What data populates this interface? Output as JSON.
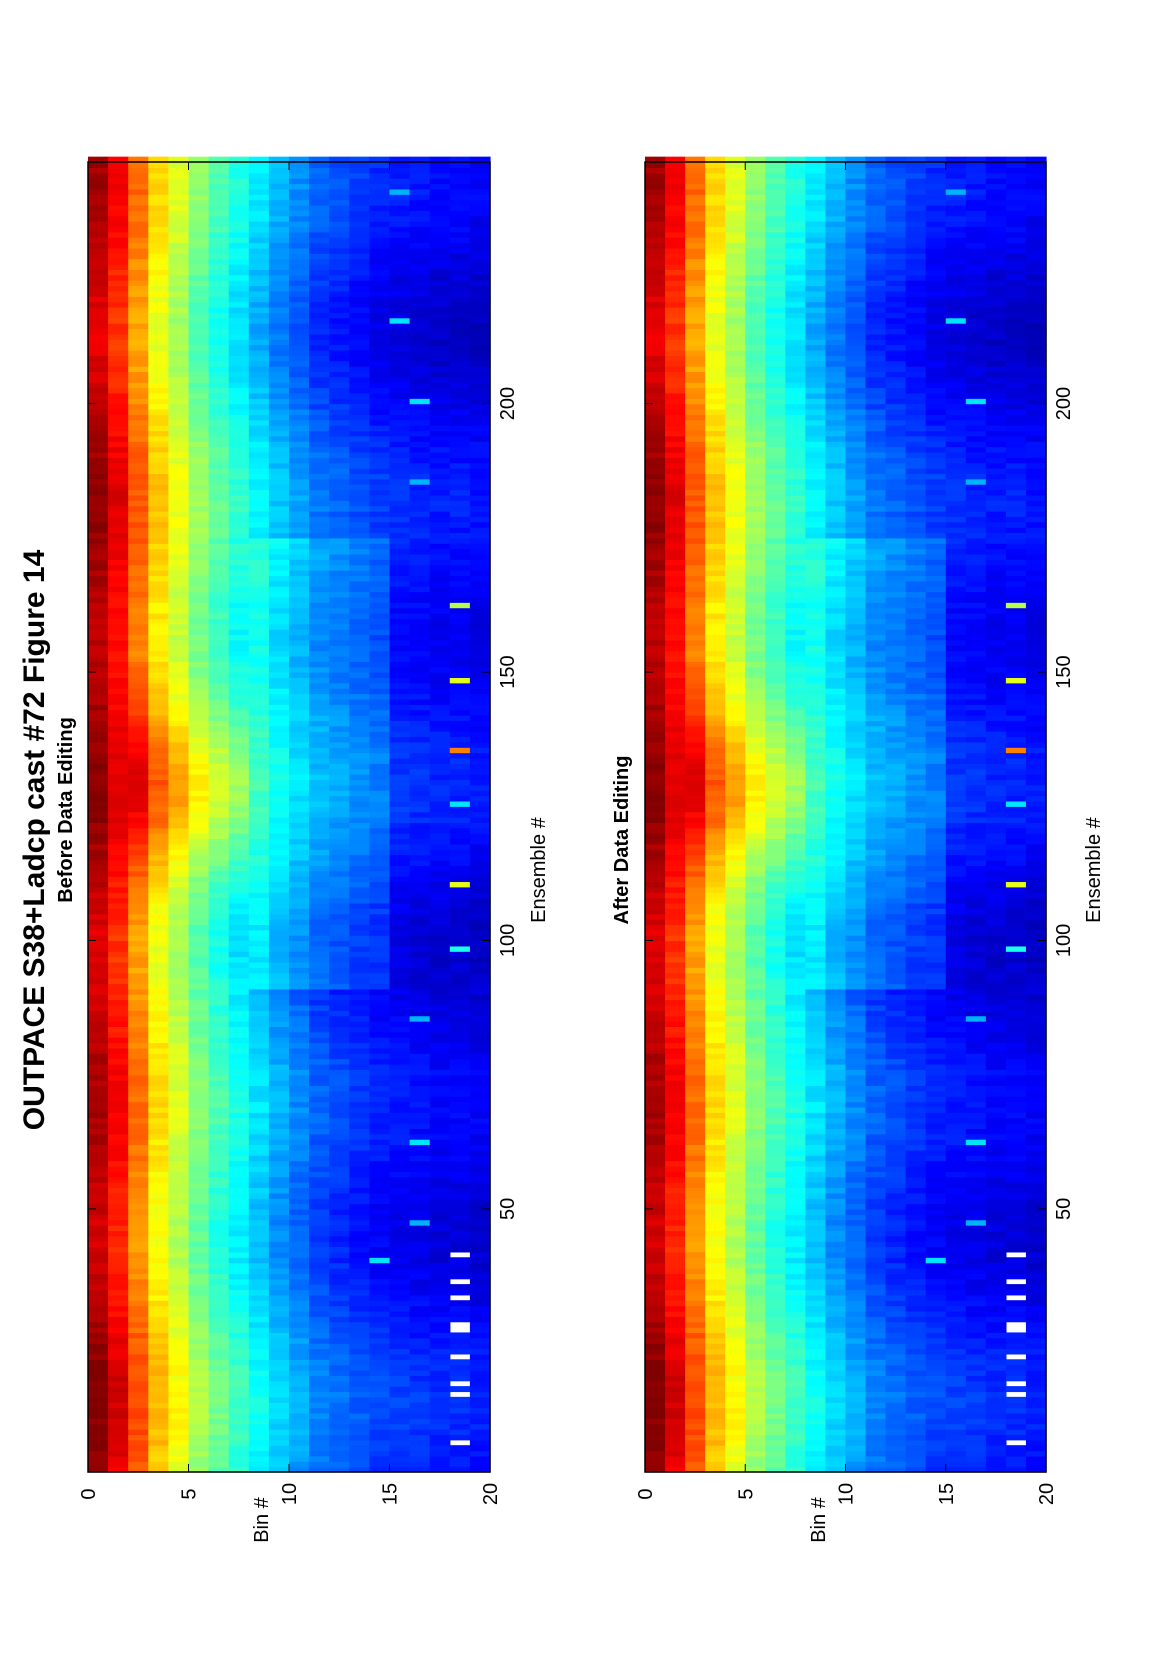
{
  "figure_title": "OUTPACE S38+Ladcp cast #72  Figure 14",
  "colormap": "jet",
  "chart_data": [
    {
      "type": "heatmap",
      "title": "Before Data Editing",
      "xlabel": "Ensemble #",
      "ylabel": "Bin #",
      "xlim": [
        1,
        245
      ],
      "ylim": [
        0,
        20
      ],
      "x_ticks": [
        50,
        100,
        150,
        200
      ],
      "y_ticks": [
        0,
        5,
        10,
        15,
        20
      ],
      "n_ensembles": 245,
      "n_bins": 20,
      "profile_by_bin": [
        0.95,
        0.87,
        0.76,
        0.65,
        0.58,
        0.5,
        0.44,
        0.39,
        0.34,
        0.29,
        0.25,
        0.21,
        0.19,
        0.17,
        0.15,
        0.14,
        0.13,
        0.12,
        0.12,
        0.11
      ],
      "missing_cells": [
        [
          6,
          19
        ],
        [
          15,
          19
        ],
        [
          17,
          19
        ],
        [
          22,
          19
        ],
        [
          27,
          19
        ],
        [
          28,
          19
        ],
        [
          33,
          19
        ],
        [
          36,
          19
        ],
        [
          41,
          19
        ]
      ],
      "spikes": [
        [
          40,
          15,
          0.35
        ],
        [
          47,
          17,
          0.3
        ],
        [
          62,
          17,
          0.35
        ],
        [
          85,
          17,
          0.3
        ],
        [
          98,
          19,
          0.4
        ],
        [
          110,
          19,
          0.6
        ],
        [
          125,
          19,
          0.35
        ],
        [
          135,
          19,
          0.75
        ],
        [
          148,
          19,
          0.6
        ],
        [
          162,
          19,
          0.55
        ],
        [
          185,
          17,
          0.3
        ],
        [
          200,
          17,
          0.35
        ],
        [
          215,
          16,
          0.35
        ],
        [
          239,
          16,
          0.3
        ]
      ]
    },
    {
      "type": "heatmap",
      "title": "After Data Editing",
      "xlabel": "Ensemble #",
      "ylabel": "Bin #",
      "xlim": [
        1,
        245
      ],
      "ylim": [
        0,
        20
      ],
      "x_ticks": [
        50,
        100,
        150,
        200
      ],
      "y_ticks": [
        0,
        5,
        10,
        15,
        20
      ],
      "n_ensembles": 245,
      "n_bins": 20,
      "profile_by_bin": [
        0.95,
        0.87,
        0.76,
        0.65,
        0.58,
        0.5,
        0.44,
        0.39,
        0.34,
        0.29,
        0.25,
        0.21,
        0.19,
        0.17,
        0.15,
        0.14,
        0.13,
        0.12,
        0.12,
        0.11
      ],
      "missing_cells": [
        [
          6,
          19
        ],
        [
          15,
          19
        ],
        [
          17,
          19
        ],
        [
          22,
          19
        ],
        [
          27,
          19
        ],
        [
          28,
          19
        ],
        [
          33,
          19
        ],
        [
          36,
          19
        ],
        [
          41,
          19
        ]
      ],
      "spikes": [
        [
          40,
          15,
          0.35
        ],
        [
          47,
          17,
          0.3
        ],
        [
          62,
          17,
          0.35
        ],
        [
          85,
          17,
          0.3
        ],
        [
          98,
          19,
          0.4
        ],
        [
          110,
          19,
          0.6
        ],
        [
          125,
          19,
          0.35
        ],
        [
          135,
          19,
          0.75
        ],
        [
          148,
          19,
          0.6
        ],
        [
          162,
          19,
          0.55
        ],
        [
          185,
          17,
          0.3
        ],
        [
          200,
          17,
          0.35
        ],
        [
          215,
          16,
          0.35
        ],
        [
          239,
          16,
          0.3
        ]
      ]
    }
  ]
}
